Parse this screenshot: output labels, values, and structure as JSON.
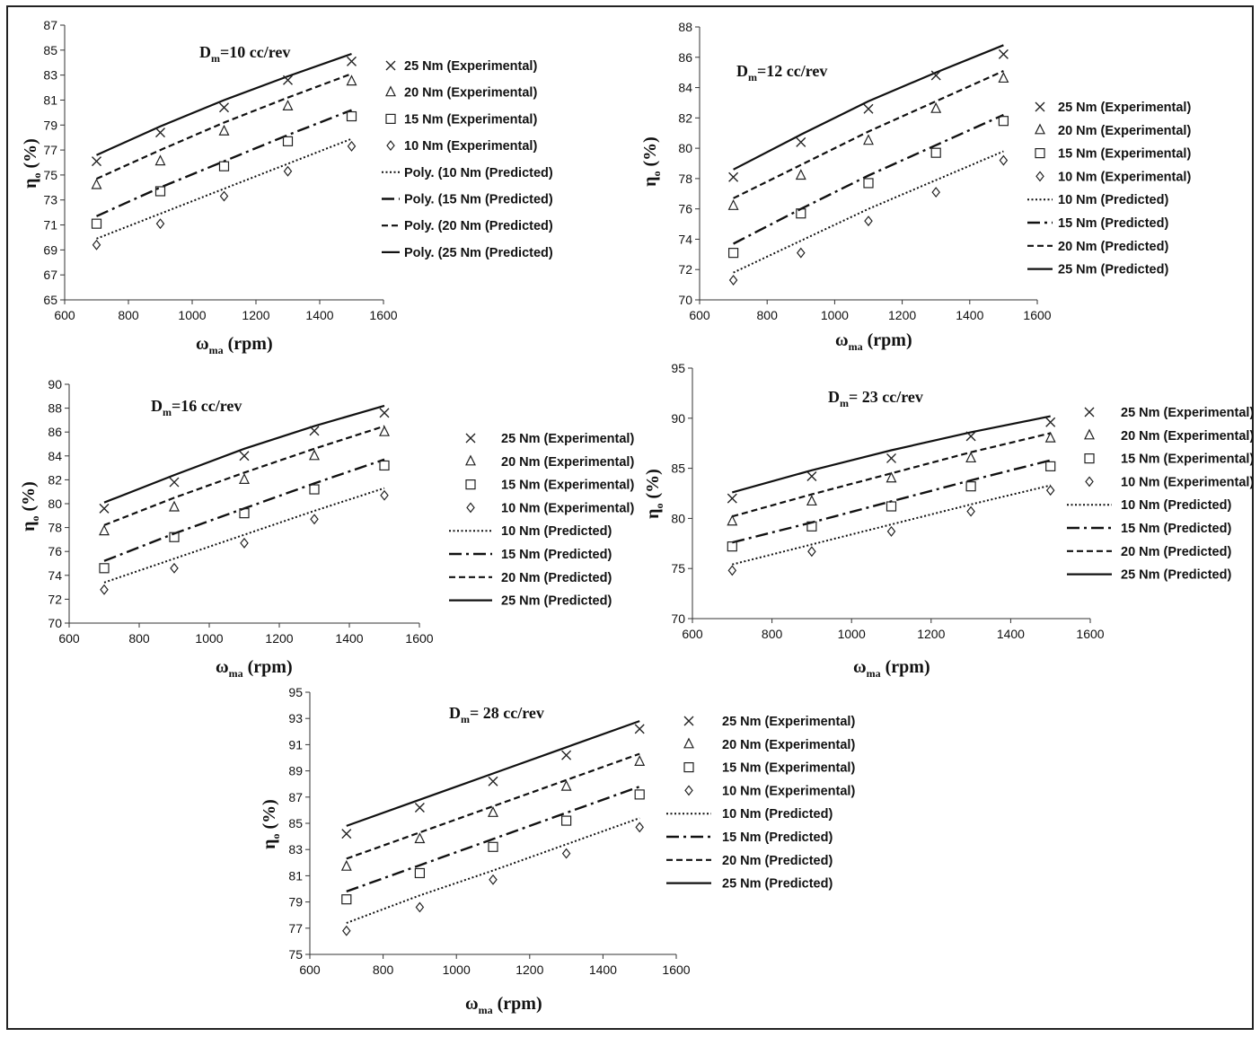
{
  "chart_data": [
    {
      "type": "scatter",
      "title_prefix": "D",
      "title_sub": "m",
      "title_text": "=10 cc/rev",
      "xlabel_main": "ω",
      "xlabel_sub": "ma",
      "xlabel_unit": " (rpm)",
      "ylabel_main": "η",
      "ylabel_sub": "o",
      "ylabel_unit": " (%)",
      "xlim": [
        600,
        1600
      ],
      "xticks": [
        600,
        800,
        1000,
        1200,
        1400,
        1600
      ],
      "ylim": [
        65,
        87
      ],
      "yticks": [
        65,
        67,
        69,
        71,
        73,
        75,
        77,
        79,
        81,
        83,
        85,
        87
      ],
      "x": [
        700,
        900,
        1100,
        1300,
        1500
      ],
      "experimental": [
        {
          "name": "25 Nm (Experimental)",
          "marker": "x",
          "values": [
            76.1,
            78.4,
            80.4,
            82.6,
            84.1
          ]
        },
        {
          "name": "20 Nm (Experimental)",
          "marker": "triangle",
          "values": [
            74.2,
            76.1,
            78.5,
            80.5,
            82.5
          ]
        },
        {
          "name": "15 Nm (Experimental)",
          "marker": "square",
          "values": [
            71.1,
            73.7,
            75.7,
            77.7,
            79.7
          ]
        },
        {
          "name": "10 Nm (Experimental)",
          "marker": "diamond",
          "values": [
            69.4,
            71.1,
            73.3,
            75.3,
            77.3
          ]
        }
      ],
      "predicted": [
        {
          "name": "Poly. (10 Nm (Predicted)",
          "style": "dotted",
          "values": [
            69.9,
            71.9,
            73.9,
            75.9,
            77.9
          ]
        },
        {
          "name": "Poly. (15 Nm (Predicted)",
          "style": "dashdot",
          "values": [
            71.7,
            74.0,
            76.1,
            78.2,
            80.2
          ]
        },
        {
          "name": "Poly. (20 Nm (Predicted)",
          "style": "dashed",
          "values": [
            74.7,
            77.0,
            79.2,
            81.2,
            83.1
          ]
        },
        {
          "name": "Poly. (25 Nm (Predicted)",
          "style": "solid",
          "values": [
            76.6,
            78.9,
            81.0,
            82.9,
            84.7
          ]
        }
      ]
    },
    {
      "type": "scatter",
      "title_prefix": "D",
      "title_sub": "m",
      "title_text": "=12 cc/rev",
      "xlabel_main": "ω",
      "xlabel_sub": "ma",
      "xlabel_unit": " (rpm)",
      "ylabel_main": "η",
      "ylabel_sub": "o",
      "ylabel_unit": " (%)",
      "xlim": [
        600,
        1600
      ],
      "xticks": [
        600,
        800,
        1000,
        1200,
        1400,
        1600
      ],
      "ylim": [
        70,
        88
      ],
      "yticks": [
        70,
        72,
        74,
        76,
        78,
        80,
        82,
        84,
        86,
        88
      ],
      "x": [
        700,
        900,
        1100,
        1300,
        1500
      ],
      "experimental": [
        {
          "name": "25 Nm (Experimental)",
          "marker": "x",
          "values": [
            78.1,
            80.4,
            82.6,
            84.8,
            86.2
          ]
        },
        {
          "name": "20 Nm (Experimental)",
          "marker": "triangle",
          "values": [
            76.2,
            78.2,
            80.5,
            82.6,
            84.6
          ]
        },
        {
          "name": "15 Nm (Experimental)",
          "marker": "square",
          "values": [
            73.1,
            75.7,
            77.7,
            79.7,
            81.8
          ]
        },
        {
          "name": "10 Nm (Experimental)",
          "marker": "diamond",
          "values": [
            71.3,
            73.1,
            75.2,
            77.1,
            79.2
          ]
        }
      ],
      "predicted": [
        {
          "name": "10 Nm (Predicted)",
          "style": "dotted",
          "values": [
            71.8,
            73.9,
            76.0,
            77.9,
            79.8
          ]
        },
        {
          "name": "15 Nm (Predicted)",
          "style": "dashdot",
          "values": [
            73.7,
            76.0,
            78.2,
            80.2,
            82.2
          ]
        },
        {
          "name": "20 Nm (Predicted)",
          "style": "dashed",
          "values": [
            76.7,
            78.9,
            81.1,
            83.1,
            85.1
          ]
        },
        {
          "name": "25 Nm (Predicted)",
          "style": "solid",
          "values": [
            78.6,
            80.9,
            83.1,
            85.0,
            86.8
          ]
        }
      ]
    },
    {
      "type": "scatter",
      "title_prefix": "D",
      "title_sub": "m",
      "title_text": "=16 cc/rev",
      "xlabel_main": "ω",
      "xlabel_sub": "ma",
      "xlabel_unit": " (rpm)",
      "ylabel_main": "η",
      "ylabel_sub": "o",
      "ylabel_unit": " (%)",
      "xlim": [
        600,
        1600
      ],
      "xticks": [
        600,
        800,
        1000,
        1200,
        1400,
        1600
      ],
      "ylim": [
        70,
        90
      ],
      "yticks": [
        70,
        72,
        74,
        76,
        78,
        80,
        82,
        84,
        86,
        88,
        90
      ],
      "x": [
        700,
        900,
        1100,
        1300,
        1500
      ],
      "experimental": [
        {
          "name": "25 Nm (Experimental)",
          "marker": "x",
          "values": [
            79.6,
            81.8,
            84.0,
            86.1,
            87.6
          ]
        },
        {
          "name": "20 Nm (Experimental)",
          "marker": "triangle",
          "values": [
            77.7,
            79.7,
            82.0,
            84.0,
            86.0
          ]
        },
        {
          "name": "15 Nm (Experimental)",
          "marker": "square",
          "values": [
            74.6,
            77.2,
            79.2,
            81.2,
            83.2
          ]
        },
        {
          "name": "10 Nm (Experimental)",
          "marker": "diamond",
          "values": [
            72.8,
            74.6,
            76.7,
            78.7,
            80.7
          ]
        }
      ],
      "predicted": [
        {
          "name": "10 Nm (Predicted)",
          "style": "dotted",
          "values": [
            73.4,
            75.4,
            77.4,
            79.4,
            81.3
          ]
        },
        {
          "name": "15 Nm (Predicted)",
          "style": "dashdot",
          "values": [
            75.2,
            77.5,
            79.6,
            81.7,
            83.7
          ]
        },
        {
          "name": "20 Nm (Predicted)",
          "style": "dashed",
          "values": [
            78.2,
            80.5,
            82.6,
            84.6,
            86.5
          ]
        },
        {
          "name": "25 Nm (Predicted)",
          "style": "solid",
          "values": [
            80.1,
            82.4,
            84.6,
            86.5,
            88.2
          ]
        }
      ]
    },
    {
      "type": "scatter",
      "title_prefix": "D",
      "title_sub": "m",
      "title_text": "= 23 cc/rev",
      "xlabel_main": "ω",
      "xlabel_sub": "ma",
      "xlabel_unit": " (rpm)",
      "ylabel_main": "η",
      "ylabel_sub": "o",
      "ylabel_unit": " (%)",
      "xlim": [
        600,
        1600
      ],
      "xticks": [
        600,
        800,
        1000,
        1200,
        1400,
        1600
      ],
      "ylim": [
        70,
        95
      ],
      "yticks": [
        70,
        75,
        80,
        85,
        90,
        95
      ],
      "x": [
        700,
        900,
        1100,
        1300,
        1500
      ],
      "experimental": [
        {
          "name": "25 Nm (Experimental)",
          "marker": "x",
          "values": [
            82.0,
            84.2,
            86.0,
            88.2,
            89.6
          ]
        },
        {
          "name": "20 Nm (Experimental)",
          "marker": "triangle",
          "values": [
            79.7,
            81.7,
            84.0,
            86.0,
            88.0
          ]
        },
        {
          "name": "15 Nm (Experimental)",
          "marker": "square",
          "values": [
            77.2,
            79.2,
            81.2,
            83.2,
            85.2
          ]
        },
        {
          "name": "10 Nm (Experimental)",
          "marker": "diamond",
          "values": [
            74.8,
            76.7,
            78.7,
            80.7,
            82.8
          ]
        }
      ],
      "predicted": [
        {
          "name": "10 Nm (Predicted)",
          "style": "dotted",
          "values": [
            75.4,
            77.4,
            79.4,
            81.4,
            83.3
          ]
        },
        {
          "name": "15 Nm (Predicted)",
          "style": "dashdot",
          "values": [
            77.6,
            79.6,
            81.7,
            83.8,
            85.8
          ]
        },
        {
          "name": "20 Nm (Predicted)",
          "style": "dashed",
          "values": [
            80.2,
            82.4,
            84.5,
            86.6,
            88.5
          ]
        },
        {
          "name": "25 Nm (Predicted)",
          "style": "solid",
          "values": [
            82.6,
            84.8,
            86.8,
            88.6,
            90.2
          ]
        }
      ]
    },
    {
      "type": "scatter",
      "title_prefix": "D",
      "title_sub": "m",
      "title_text": "= 28 cc/rev",
      "xlabel_main": "ω",
      "xlabel_sub": "ma",
      "xlabel_unit": " (rpm)",
      "ylabel_main": "η",
      "ylabel_sub": "o",
      "ylabel_unit": " (%)",
      "xlim": [
        600,
        1600
      ],
      "xticks": [
        600,
        800,
        1000,
        1200,
        1400,
        1600
      ],
      "ylim": [
        75,
        95
      ],
      "yticks": [
        75,
        77,
        79,
        81,
        83,
        85,
        87,
        89,
        91,
        93,
        95
      ],
      "x": [
        700,
        900,
        1100,
        1300,
        1500
      ],
      "experimental": [
        {
          "name": "25 Nm (Experimental)",
          "marker": "x",
          "values": [
            84.2,
            86.2,
            88.2,
            90.2,
            92.2
          ]
        },
        {
          "name": "20 Nm (Experimental)",
          "marker": "triangle",
          "values": [
            81.7,
            83.8,
            85.8,
            87.8,
            89.7
          ]
        },
        {
          "name": "15 Nm (Experimental)",
          "marker": "square",
          "values": [
            79.2,
            81.2,
            83.2,
            85.2,
            87.2
          ]
        },
        {
          "name": "10 Nm (Experimental)",
          "marker": "diamond",
          "values": [
            76.8,
            78.6,
            80.7,
            82.7,
            84.7
          ]
        }
      ],
      "predicted": [
        {
          "name": "10 Nm (Predicted)",
          "style": "dotted",
          "values": [
            77.4,
            79.5,
            81.4,
            83.4,
            85.4
          ]
        },
        {
          "name": "15 Nm (Predicted)",
          "style": "dashdot",
          "values": [
            79.8,
            81.8,
            83.8,
            85.8,
            87.8
          ]
        },
        {
          "name": "20 Nm (Predicted)",
          "style": "dashed",
          "values": [
            82.3,
            84.3,
            86.3,
            88.3,
            90.3
          ]
        },
        {
          "name": "25 Nm (Predicted)",
          "style": "solid",
          "values": [
            84.8,
            86.8,
            88.8,
            90.8,
            92.8
          ]
        }
      ]
    }
  ]
}
